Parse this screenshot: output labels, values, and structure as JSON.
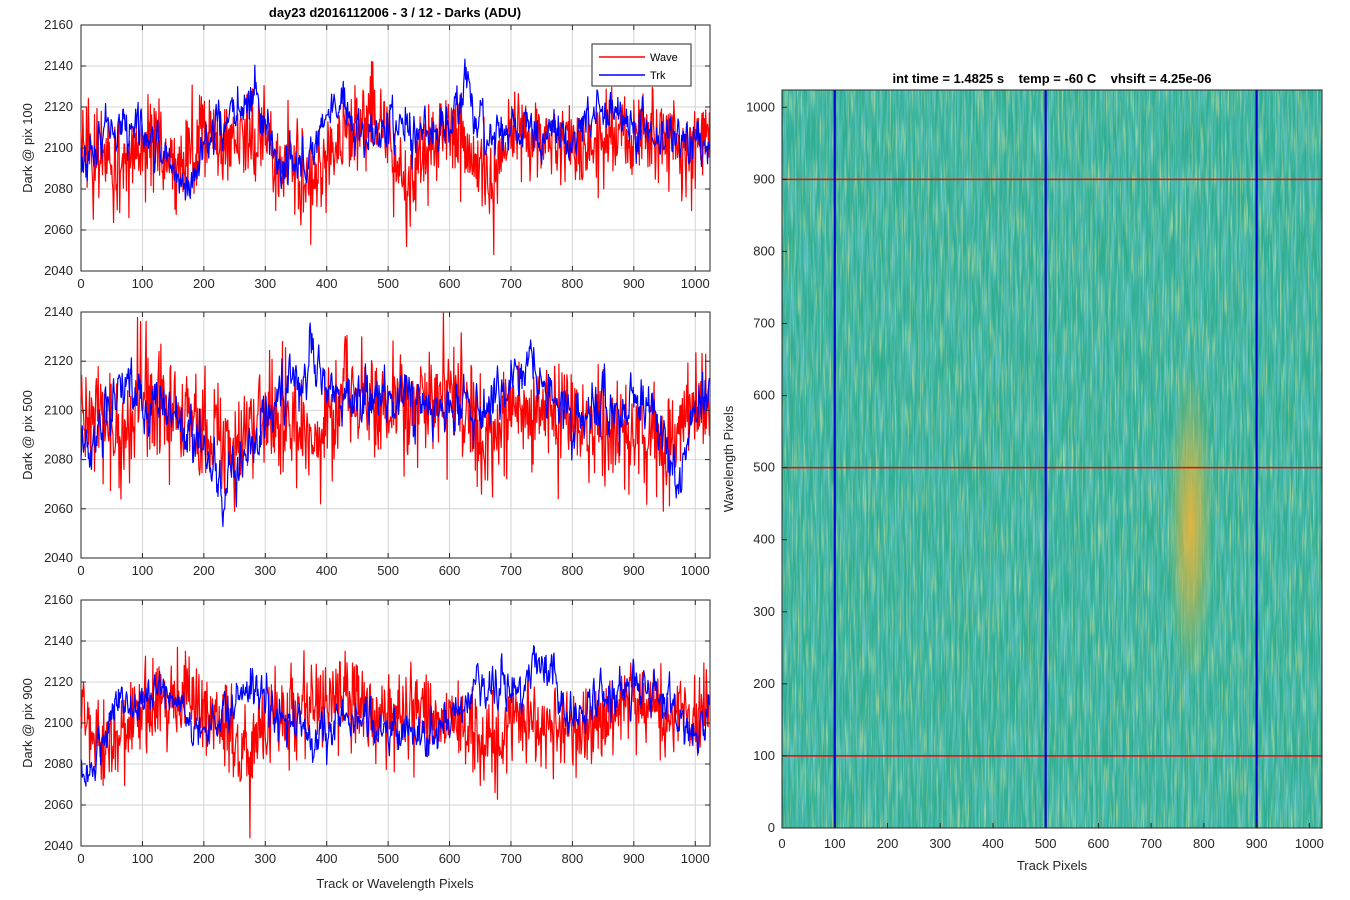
{
  "chart_data": [
    {
      "type": "line",
      "title": "day23 d2016112006 - 3 / 12 - Darks (ADU)",
      "xlabel": "",
      "ylabel": "Dark @ pix 100",
      "xlim": [
        0,
        1024
      ],
      "ylim": [
        2040,
        2160
      ],
      "xticks": [
        "0",
        "100",
        "200",
        "300",
        "400",
        "500",
        "600",
        "700",
        "800",
        "900",
        "1000"
      ],
      "yticks": [
        "2040",
        "2060",
        "2080",
        "2100",
        "2120",
        "2140",
        "2160"
      ],
      "grid": true,
      "legend": {
        "placement": "top-right",
        "entries": [
          "Wave",
          "Trk"
        ]
      },
      "series": [
        {
          "name": "Wave",
          "color": "#ff0000",
          "mean": 2105,
          "noise_std": 11,
          "spike_min": 2047,
          "spike_max": 2142,
          "points_sampled": [
            [
              0,
              2101
            ],
            [
              50,
              2058
            ],
            [
              120,
              2105
            ],
            [
              150,
              2054
            ],
            [
              200,
              2112
            ],
            [
              300,
              2100
            ],
            [
              374,
              2053
            ],
            [
              440,
              2125
            ],
            [
              475,
              2142
            ],
            [
              530,
              2052
            ],
            [
              600,
              2115
            ],
            [
              672,
              2048
            ],
            [
              700,
              2120
            ],
            [
              800,
              2090
            ],
            [
              900,
              2112
            ],
            [
              1000,
              2095
            ],
            [
              1023,
              2133
            ]
          ]
        },
        {
          "name": "Trk",
          "color": "#0000ff",
          "mean": 2105,
          "noise_std": 7,
          "points_sampled": [
            [
              0,
              2096
            ],
            [
              50,
              2110
            ],
            [
              100,
              2108
            ],
            [
              150,
              2095
            ],
            [
              170,
              2082
            ],
            [
              200,
              2102
            ],
            [
              250,
              2118
            ],
            [
              290,
              2124
            ],
            [
              320,
              2092
            ],
            [
              370,
              2094
            ],
            [
              410,
              2120
            ],
            [
              460,
              2105
            ],
            [
              500,
              2108
            ],
            [
              600,
              2110
            ],
            [
              625,
              2128
            ],
            [
              660,
              2112
            ],
            [
              700,
              2110
            ],
            [
              800,
              2106
            ],
            [
              850,
              2118
            ],
            [
              900,
              2110
            ],
            [
              1000,
              2103
            ],
            [
              1023,
              2100
            ]
          ]
        }
      ]
    },
    {
      "type": "line",
      "title": "",
      "xlabel": "",
      "ylabel": "Dark @ pix 500",
      "xlim": [
        0,
        1024
      ],
      "ylim": [
        2040,
        2140
      ],
      "xticks": [
        "0",
        "100",
        "200",
        "300",
        "400",
        "500",
        "600",
        "700",
        "800",
        "900",
        "1000"
      ],
      "yticks": [
        "2040",
        "2060",
        "2080",
        "2100",
        "2120",
        "2140"
      ],
      "grid": true,
      "series": [
        {
          "name": "Wave",
          "color": "#ff0000",
          "mean": 2100,
          "noise_std": 11,
          "spike_min": 2059,
          "spike_max": 2130,
          "points_sampled": [
            [
              0,
              2100
            ],
            [
              65,
              2064
            ],
            [
              100,
              2115
            ],
            [
              250,
              2059
            ],
            [
              300,
              2095
            ],
            [
              390,
              2062
            ],
            [
              430,
              2130
            ],
            [
              500,
              2100
            ],
            [
              600,
              2120
            ],
            [
              660,
              2067
            ],
            [
              700,
              2100
            ],
            [
              800,
              2095
            ],
            [
              948,
              2059
            ],
            [
              1000,
              2110
            ],
            [
              1023,
              2095
            ]
          ]
        },
        {
          "name": "Trk",
          "color": "#0000ff",
          "mean": 2098,
          "noise_std": 7,
          "points_sampled": [
            [
              0,
              2085
            ],
            [
              30,
              2090
            ],
            [
              60,
              2108
            ],
            [
              100,
              2104
            ],
            [
              150,
              2096
            ],
            [
              200,
              2088
            ],
            [
              230,
              2068
            ],
            [
              270,
              2078
            ],
            [
              310,
              2100
            ],
            [
              360,
              2110
            ],
            [
              380,
              2118
            ],
            [
              420,
              2102
            ],
            [
              470,
              2104
            ],
            [
              520,
              2106
            ],
            [
              560,
              2102
            ],
            [
              620,
              2100
            ],
            [
              660,
              2100
            ],
            [
              700,
              2116
            ],
            [
              720,
              2120
            ],
            [
              800,
              2100
            ],
            [
              870,
              2098
            ],
            [
              930,
              2104
            ],
            [
              970,
              2070
            ],
            [
              1000,
              2100
            ],
            [
              1023,
              2108
            ]
          ]
        }
      ]
    },
    {
      "type": "line",
      "title": "",
      "xlabel": "Track or Wavelength Pixels",
      "ylabel": "Dark @ pix 900",
      "xlim": [
        0,
        1024
      ],
      "ylim": [
        2040,
        2160
      ],
      "xticks": [
        "0",
        "100",
        "200",
        "300",
        "400",
        "500",
        "600",
        "700",
        "800",
        "900",
        "1000"
      ],
      "yticks": [
        "2040",
        "2060",
        "2080",
        "2100",
        "2120",
        "2140",
        "2160"
      ],
      "grid": true,
      "series": [
        {
          "name": "Wave",
          "color": "#ff0000",
          "mean": 2103,
          "noise_std": 11,
          "spike_min": 2044,
          "spike_max": 2135,
          "points_sampled": [
            [
              0,
              2110
            ],
            [
              40,
              2052
            ],
            [
              100,
              2120
            ],
            [
              170,
              2135
            ],
            [
              200,
              2100
            ],
            [
              275,
              2044
            ],
            [
              300,
              2095
            ],
            [
              350,
              2110
            ],
            [
              430,
              2135
            ],
            [
              500,
              2100
            ],
            [
              550,
              2120
            ],
            [
              680,
              2058
            ],
            [
              700,
              2105
            ],
            [
              800,
              2080
            ],
            [
              900,
              2120
            ],
            [
              1000,
              2102
            ],
            [
              1023,
              2128
            ]
          ]
        },
        {
          "name": "Trk",
          "color": "#0000ff",
          "mean": 2102,
          "noise_std": 7,
          "points_sampled": [
            [
              0,
              2080
            ],
            [
              20,
              2076
            ],
            [
              60,
              2108
            ],
            [
              100,
              2110
            ],
            [
              130,
              2118
            ],
            [
              170,
              2102
            ],
            [
              200,
              2096
            ],
            [
              230,
              2100
            ],
            [
              270,
              2122
            ],
            [
              300,
              2108
            ],
            [
              340,
              2100
            ],
            [
              400,
              2090
            ],
            [
              420,
              2104
            ],
            [
              460,
              2100
            ],
            [
              510,
              2098
            ],
            [
              560,
              2092
            ],
            [
              600,
              2100
            ],
            [
              640,
              2118
            ],
            [
              700,
              2114
            ],
            [
              740,
              2132
            ],
            [
              760,
              2128
            ],
            [
              800,
              2100
            ],
            [
              850,
              2112
            ],
            [
              900,
              2115
            ],
            [
              960,
              2110
            ],
            [
              1000,
              2088
            ],
            [
              1023,
              2110
            ]
          ]
        }
      ]
    },
    {
      "type": "heatmap",
      "title": "int time = 1.4825 s    temp = -60 C    vhsift = 4.25e-06",
      "xlabel": "Track Pixels",
      "ylabel": "Wavelength Pixels",
      "xlim": [
        0,
        1024
      ],
      "ylim": [
        0,
        1024
      ],
      "xticks": [
        "0",
        "100",
        "200",
        "300",
        "400",
        "500",
        "600",
        "700",
        "800",
        "900",
        "1000"
      ],
      "yticks": [
        "0",
        "100",
        "200",
        "300",
        "400",
        "500",
        "600",
        "700",
        "800",
        "900",
        "1000"
      ],
      "grid": false,
      "colormap": {
        "low": "#1f8fb4",
        "mid": "#2fae92",
        "high": "#e4b43a"
      },
      "hotspot": {
        "x_center": 775,
        "y_center": 420,
        "x_halfwidth": 45,
        "y_halfwidth": 230,
        "label": "warm column near track 775"
      },
      "overlay_lines": {
        "vertical": {
          "color": "#0000cc",
          "x_values": [
            100,
            500,
            900
          ]
        },
        "horizontal": {
          "color": "#ff0000",
          "y_values": [
            100,
            500,
            900
          ]
        }
      }
    }
  ]
}
